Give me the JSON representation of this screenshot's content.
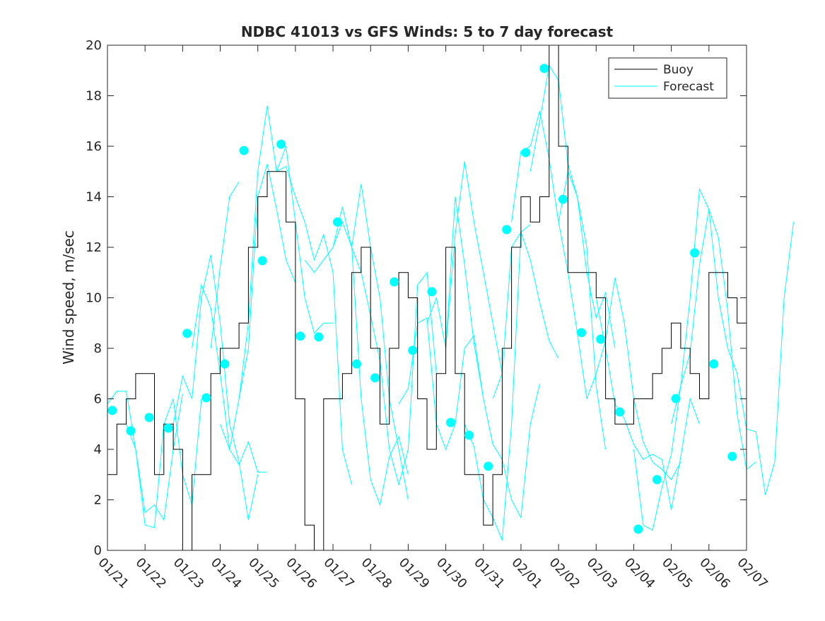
{
  "chart_data": {
    "type": "line",
    "title": "NDBC 41013 vs GFS Winds: 5 to 7 day forecast",
    "xlabel": "",
    "ylabel": "Wind speed, m/sec",
    "xlim": [
      0,
      17
    ],
    "ylim": [
      0,
      20
    ],
    "yticks": [
      0,
      2,
      4,
      6,
      8,
      10,
      12,
      14,
      16,
      18,
      20
    ],
    "xtick_labels": [
      "01/21",
      "01/22",
      "01/23",
      "01/24",
      "01/25",
      "01/26",
      "01/27",
      "01/28",
      "01/29",
      "01/30",
      "01/31",
      "02/01",
      "02/02",
      "02/03",
      "02/04",
      "02/05",
      "02/06",
      "02/07"
    ],
    "x_units": "days since 01/21",
    "legend": {
      "placement": "top-right",
      "entries": [
        "Buoy",
        "Forecast"
      ]
    },
    "colors": {
      "buoy": "#000000",
      "forecast": "#00ffff"
    },
    "buoy": {
      "step": 0.25,
      "values": [
        3,
        5,
        6,
        7,
        7,
        3,
        5,
        4,
        0,
        3,
        3,
        7,
        8,
        8,
        9,
        12,
        14,
        15,
        15,
        13,
        6,
        1,
        0,
        6,
        6,
        7,
        11,
        12,
        8,
        5,
        8,
        11,
        10,
        6,
        4,
        7,
        12,
        7,
        3,
        3,
        1,
        3,
        8,
        12,
        14,
        13,
        14,
        20,
        16,
        11,
        11,
        11,
        10,
        6,
        5,
        5,
        6,
        6,
        7,
        8,
        9,
        8,
        7,
        6,
        11,
        11,
        10,
        9
      ]
    },
    "forecast_runs": [
      {
        "start": 0.0,
        "values": [
          5.8,
          6.3,
          6.3,
          4,
          1.5,
          1.8,
          1.2,
          4,
          6.2
        ]
      },
      {
        "start": 0.5,
        "values": [
          5,
          4,
          1,
          0.9,
          5,
          6,
          3,
          1.8,
          6
        ]
      },
      {
        "start": 1.75,
        "values": [
          5,
          6.9,
          6,
          10,
          11.7,
          9,
          5,
          3.5,
          1.2,
          3
        ]
      },
      {
        "start": 2.25,
        "values": [
          8,
          10.5,
          9.6,
          7,
          4,
          3.4,
          4.3,
          3.1,
          3.1
        ]
      },
      {
        "start": 2.75,
        "values": [
          8,
          11.2,
          14,
          14.6
        ]
      },
      {
        "start": 3.0,
        "values": [
          5,
          4,
          6,
          8,
          14,
          15.3,
          13.5,
          11.5,
          10.6
        ]
      },
      {
        "start": 3.5,
        "values": [
          6,
          9,
          15,
          17.6,
          15,
          16,
          13,
          10,
          8.6,
          9,
          9
        ]
      },
      {
        "start": 4.5,
        "values": [
          15,
          15.2,
          14,
          13,
          11.5,
          12.5,
          11,
          4,
          2.6
        ]
      },
      {
        "start": 5.25,
        "values": [
          11.5,
          11,
          11.5,
          12,
          13.6,
          12,
          14.5,
          12,
          10,
          6,
          4,
          2
        ]
      },
      {
        "start": 6.0,
        "values": [
          12,
          13,
          12,
          6,
          2.8,
          1.8,
          3.7,
          4.5,
          3
        ]
      },
      {
        "start": 6.5,
        "values": [
          12,
          11,
          9.3,
          7.5,
          4,
          2.6,
          4,
          10.5,
          11,
          7
        ]
      },
      {
        "start": 7.75,
        "values": [
          5.8,
          6.4,
          9,
          9.2,
          5,
          4,
          5,
          8,
          8.5,
          6
        ]
      },
      {
        "start": 8.5,
        "values": [
          9,
          10,
          8,
          12.5,
          15.4,
          13,
          11,
          9,
          7
        ]
      },
      {
        "start": 9.0,
        "values": [
          8,
          14,
          11.3,
          8.2,
          6,
          4.2,
          3.6,
          2,
          1.3,
          5,
          6.6
        ]
      },
      {
        "start": 9.5,
        "values": [
          5,
          4.1,
          2,
          1.3,
          0.4,
          5,
          12.6,
          12.9
        ]
      },
      {
        "start": 10.25,
        "values": [
          6,
          7,
          12,
          12.6,
          11.5,
          9.8,
          8.3,
          7.6
        ]
      },
      {
        "start": 10.75,
        "values": [
          13,
          15.8,
          16,
          17.4,
          15.5,
          13,
          15,
          14,
          12,
          6.5,
          4
        ]
      },
      {
        "start": 11.25,
        "values": [
          15,
          17,
          19.2,
          18.6,
          15.3,
          14,
          11,
          9.2,
          10.2,
          8
        ]
      },
      {
        "start": 12.0,
        "values": [
          13,
          11,
          8.6,
          6,
          7,
          8.3,
          10.8,
          9,
          6,
          4.3,
          3.5,
          3.2,
          2.8,
          3.5
        ]
      },
      {
        "start": 13.0,
        "values": [
          10,
          8,
          5.8,
          5.2,
          4.2,
          3.6,
          3.8,
          3.6,
          1.6,
          3.7,
          6,
          5
        ]
      },
      {
        "start": 14.0,
        "values": [
          4,
          1,
          0.8,
          2.5,
          3.8,
          6.5,
          7.8,
          11.3,
          13.5,
          12.4,
          9.5,
          5.4,
          3.2,
          3.5
        ]
      },
      {
        "start": 15.0,
        "values": [
          5,
          6.5,
          10,
          14.3,
          13.5,
          10,
          8,
          7,
          4.8,
          4.7,
          2.2,
          3.5,
          10,
          13
        ]
      }
    ],
    "forecast_points": {
      "x": [
        0.13,
        0.62,
        1.11,
        1.62,
        2.12,
        2.63,
        3.12,
        3.63,
        4.12,
        4.62,
        5.13,
        5.62,
        6.12,
        6.63,
        7.12,
        7.63,
        8.12,
        8.63,
        9.13,
        9.62,
        10.13,
        10.62,
        11.13,
        11.62,
        12.12,
        12.61,
        13.12,
        13.63,
        14.12,
        14.62,
        15.12,
        15.62,
        16.13,
        16.62
      ],
      "y": [
        5.54,
        4.73,
        5.26,
        4.84,
        8.59,
        6.04,
        7.38,
        15.83,
        11.47,
        16.08,
        8.48,
        8.45,
        13.0,
        7.38,
        6.83,
        10.63,
        7.92,
        10.24,
        5.06,
        4.56,
        3.33,
        12.7,
        15.75,
        19.08,
        13.9,
        8.62,
        8.36,
        5.48,
        0.84,
        2.8,
        6.01,
        11.78,
        7.38,
        3.72
      ]
    }
  }
}
